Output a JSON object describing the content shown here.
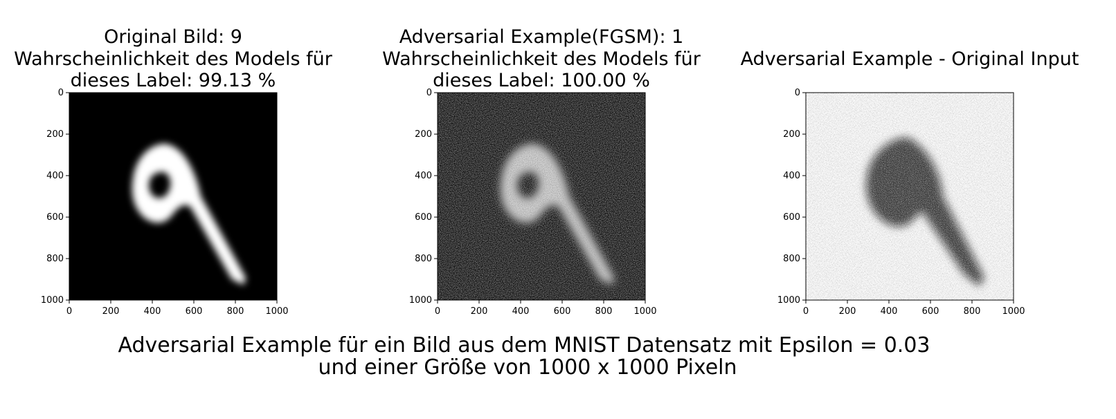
{
  "figure_title": {
    "line1": "Adversarial Example für ein Bild aus dem MNIST Datensatz mit Epsilon = 0.03",
    "line2": "und einer Größe von 1000 x 1000 Pixeln"
  },
  "chart_data": [
    {
      "type": "heatmap",
      "title_lines": [
        "Original Bild: 9",
        "Wahrscheinlichkeit des Models für",
        "dieses Label:    99.13 %"
      ],
      "predicted_label": "9",
      "probability_percent": 99.13,
      "xlim": [
        0,
        1000
      ],
      "ylim": [
        1000,
        0
      ],
      "x_ticks": [
        "0",
        "200",
        "400",
        "600",
        "800",
        "1000"
      ],
      "y_ticks": [
        "0",
        "200",
        "400",
        "600",
        "800",
        "1000"
      ],
      "colormap": "gray"
    },
    {
      "type": "heatmap",
      "title_lines": [
        "Adversarial Example(FGSM): 1",
        "Wahrscheinlichkeit des Models für",
        "dieses Label:   100.00 %"
      ],
      "predicted_label": "1",
      "probability_percent": 100.0,
      "xlim": [
        0,
        1000
      ],
      "ylim": [
        1000,
        0
      ],
      "x_ticks": [
        "0",
        "200",
        "400",
        "600",
        "800",
        "1000"
      ],
      "y_ticks": [
        "0",
        "200",
        "400",
        "600",
        "800",
        "1000"
      ],
      "colormap": "gray"
    },
    {
      "type": "heatmap",
      "title_lines": [
        "Adversarial Example - Original Input"
      ],
      "xlim": [
        0,
        1000
      ],
      "ylim": [
        1000,
        0
      ],
      "x_ticks": [
        "0",
        "200",
        "400",
        "600",
        "800",
        "1000"
      ],
      "y_ticks": [
        "0",
        "200",
        "400",
        "600",
        "800",
        "1000"
      ],
      "colormap": "gray"
    }
  ],
  "colors": {
    "background": "#ffffff",
    "axes": "#000000"
  }
}
